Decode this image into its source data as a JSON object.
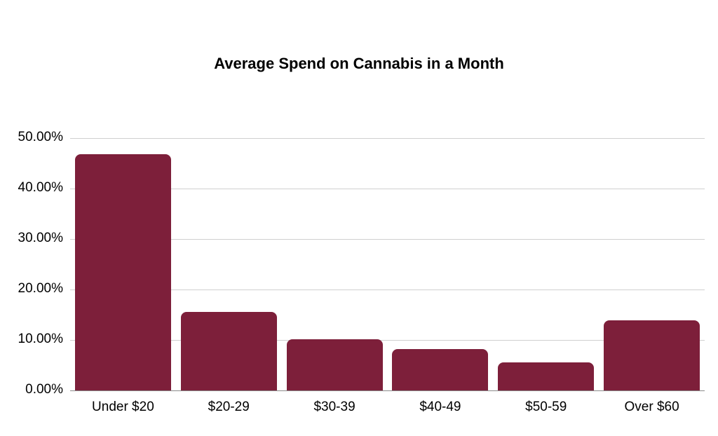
{
  "chart_data": {
    "type": "bar",
    "title": "Average Spend on Cannabis in a Month",
    "xlabel": "",
    "ylabel": "",
    "categories": [
      "Under $20",
      "$20-29",
      "$30-39",
      "$40-49",
      "$50-59",
      "Over $60"
    ],
    "values": [
      46.8,
      15.6,
      10.1,
      8.2,
      5.6,
      13.9
    ],
    "value_unit": "%",
    "ylim": [
      0,
      50
    ],
    "yticks": [
      "0.00%",
      "10.00%",
      "20.00%",
      "30.00%",
      "40.00%",
      "50.00%"
    ],
    "grid": true,
    "legend": null,
    "bar_color": "#7d1f3a"
  }
}
